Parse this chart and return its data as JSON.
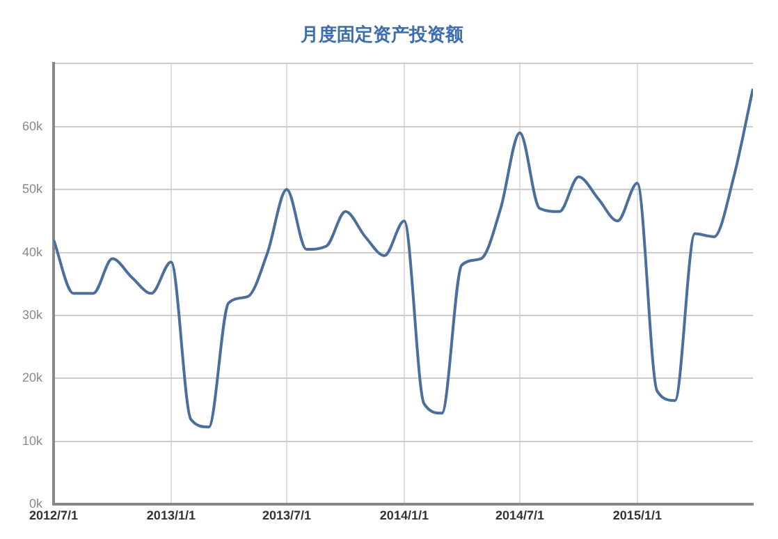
{
  "chart_data": {
    "type": "line",
    "title": "月度固定资产投资额",
    "x": [
      "2012-07",
      "2012-08",
      "2012-09",
      "2012-10",
      "2012-11",
      "2012-12",
      "2013-01",
      "2013-02",
      "2013-03",
      "2013-04",
      "2013-05",
      "2013-06",
      "2013-07",
      "2013-08",
      "2013-09",
      "2013-10",
      "2013-11",
      "2013-12",
      "2014-01",
      "2014-02",
      "2014-03",
      "2014-04",
      "2014-05",
      "2014-06",
      "2014-07",
      "2014-08",
      "2014-09",
      "2014-10",
      "2014-11",
      "2014-12",
      "2015-01",
      "2015-02",
      "2015-03",
      "2015-04",
      "2015-05",
      "2015-06",
      "2015-07"
    ],
    "series": [
      {
        "color": "#4a6f9c",
        "values": [
          42000,
          33500,
          33500,
          39000,
          36000,
          33500,
          38500,
          13500,
          12300,
          32000,
          33000,
          40000,
          50000,
          40500,
          41000,
          46500,
          42500,
          39500,
          45000,
          16000,
          14500,
          38000,
          39000,
          47000,
          59000,
          47000,
          46500,
          52000,
          48500,
          45000,
          51000,
          18000,
          16500,
          43000,
          42500,
          52000,
          66000
        ]
      }
    ],
    "xlim": [
      "2012-07",
      "2015-07"
    ],
    "xticks": [
      {
        "value": "2012-07",
        "label": "2012/7/1"
      },
      {
        "value": "2013-01",
        "label": "2013/1/1"
      },
      {
        "value": "2013-07",
        "label": "2013/7/1"
      },
      {
        "value": "2014-01",
        "label": "2014/1/1"
      },
      {
        "value": "2014-07",
        "label": "2014/7/1"
      },
      {
        "value": "2015-01",
        "label": "2015/1/1"
      }
    ],
    "ylim": [
      0,
      70000
    ],
    "yticks": [
      {
        "value": 0,
        "label": "0k"
      },
      {
        "value": 10000,
        "label": "10k"
      },
      {
        "value": 20000,
        "label": "20k"
      },
      {
        "value": 30000,
        "label": "30k"
      },
      {
        "value": 40000,
        "label": "40k"
      },
      {
        "value": 50000,
        "label": "50k"
      },
      {
        "value": 60000,
        "label": "60k"
      },
      {
        "value": 70000,
        "label": null
      }
    ],
    "grid": true,
    "marker": "none",
    "line_style": "solid",
    "legend": false
  }
}
